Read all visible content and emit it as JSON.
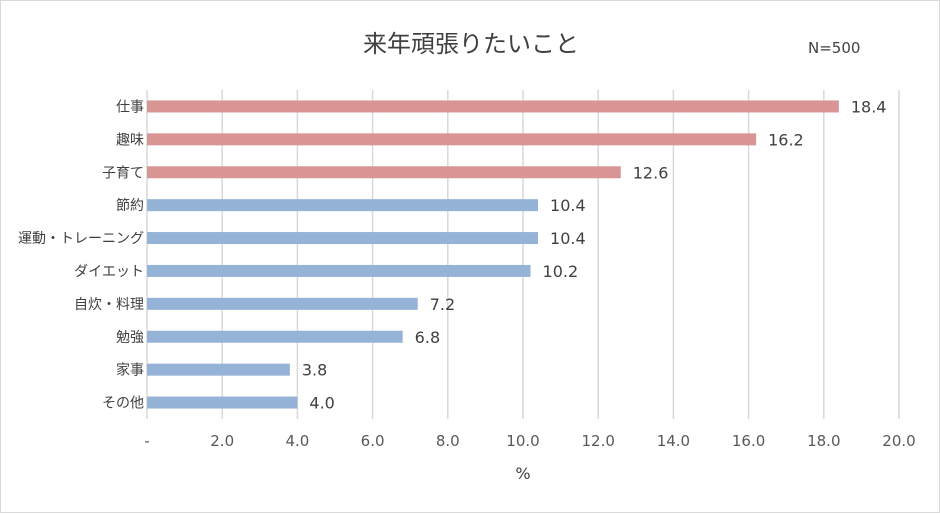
{
  "chart_data": {
    "type": "bar",
    "orientation": "horizontal",
    "title": "来年頑張りたいこと",
    "note": "N=500",
    "xlabel": "%",
    "ylabel": "",
    "xlim": [
      0,
      20
    ],
    "grid": true,
    "categories": [
      "仕事",
      "趣味",
      "子育て",
      "節約",
      "運動・トレーニング",
      "ダイエット",
      "自炊・料理",
      "勉強",
      "家事",
      "その他"
    ],
    "values": [
      18.4,
      16.2,
      12.6,
      10.4,
      10.4,
      10.2,
      7.2,
      6.8,
      3.8,
      4.0
    ],
    "value_labels": [
      "18.4",
      "16.2",
      "12.6",
      "10.4",
      "10.4",
      "10.2",
      "7.2",
      "6.8",
      "3.8",
      "4.0"
    ],
    "x_ticks": [
      0,
      2,
      4,
      6,
      8,
      10,
      12,
      14,
      16,
      18,
      20
    ],
    "x_tick_labels": [
      "-",
      "2.0",
      "4.0",
      "6.0",
      "8.0",
      "10.0",
      "12.0",
      "14.0",
      "16.0",
      "18.0",
      "20.0"
    ],
    "highlight_count": 3,
    "colors": {
      "highlight": "#d99594",
      "normal": "#95b3d7",
      "grid": "#d9d9d9"
    }
  }
}
